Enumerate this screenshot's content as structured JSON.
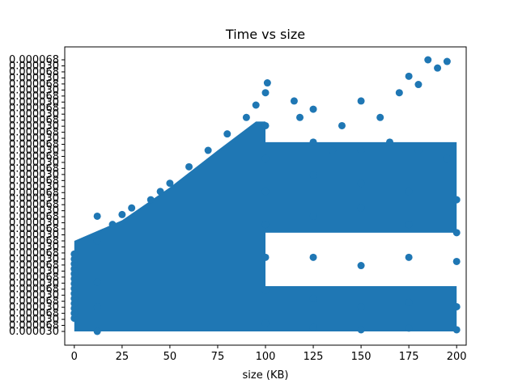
{
  "chart_data": {
    "type": "scatter",
    "title": "Time vs size",
    "xlabel": "size (KB)",
    "ylabel": "",
    "xlim": [
      -5,
      205
    ],
    "x_ticks": [
      0,
      25,
      50,
      75,
      100,
      125,
      150,
      175,
      200
    ],
    "y_tick_labels_legible": [
      "0.000068",
      "0.000030"
    ],
    "grid": false,
    "legend": "none",
    "marker_color": "#1f77b4",
    "note_density": "dense categorical scatter; y-axis is categorical with overlapping tick labels",
    "series": [
      {
        "name": "",
        "color": "#1f77b4",
        "points": [
          [
            0,
            0.16
          ],
          [
            0,
            0.22
          ],
          [
            0,
            0.28
          ],
          [
            0,
            0.34
          ],
          [
            0,
            0.4
          ],
          [
            0,
            0.46
          ],
          [
            0,
            0.52
          ],
          [
            0,
            0.58
          ],
          [
            0,
            0.64
          ],
          [
            0,
            0.7
          ],
          [
            0,
            0.76
          ],
          [
            0,
            0.82
          ],
          [
            0,
            0.88
          ],
          [
            0,
            0.94
          ],
          [
            12,
            0.0
          ],
          [
            12,
            0.3
          ],
          [
            12,
            0.6
          ],
          [
            12,
            1.1
          ],
          [
            12,
            1.4
          ],
          [
            20,
            1.3
          ],
          [
            25,
            1.42
          ],
          [
            30,
            1.5
          ],
          [
            40,
            1.6
          ],
          [
            45,
            1.7
          ],
          [
            50,
            1.8
          ],
          [
            60,
            2.0
          ],
          [
            70,
            2.2
          ],
          [
            80,
            2.4
          ],
          [
            90,
            2.6
          ],
          [
            95,
            2.75
          ],
          [
            100,
            2.9
          ],
          [
            101,
            3.02
          ],
          [
            100,
            2.5
          ],
          [
            100,
            2.1
          ],
          [
            100,
            1.7
          ],
          [
            100,
            1.3
          ],
          [
            100,
            0.9
          ],
          [
            100,
            0.5
          ],
          [
            100,
            0.1
          ],
          [
            115,
            2.8
          ],
          [
            118,
            2.6
          ],
          [
            125,
            2.7
          ],
          [
            140,
            2.5
          ],
          [
            150,
            2.8
          ],
          [
            160,
            2.6
          ],
          [
            170,
            2.9
          ],
          [
            175,
            3.1
          ],
          [
            180,
            3.0
          ],
          [
            185,
            3.3
          ],
          [
            190,
            3.2
          ],
          [
            195,
            3.28
          ],
          [
            125,
            2.3
          ],
          [
            135,
            2.2
          ],
          [
            150,
            2.2
          ],
          [
            165,
            2.3
          ],
          [
            180,
            2.2
          ],
          [
            195,
            2.1
          ],
          [
            125,
            1.9
          ],
          [
            150,
            1.8
          ],
          [
            175,
            1.7
          ],
          [
            200,
            1.6
          ],
          [
            125,
            1.4
          ],
          [
            150,
            1.5
          ],
          [
            175,
            1.3
          ],
          [
            200,
            1.2
          ],
          [
            125,
            0.9
          ],
          [
            150,
            0.8
          ],
          [
            175,
            0.9
          ],
          [
            200,
            0.85
          ],
          [
            125,
            0.4
          ],
          [
            150,
            0.3
          ],
          [
            175,
            0.35
          ],
          [
            200,
            0.3
          ],
          [
            125,
            0.05
          ],
          [
            150,
            0.02
          ],
          [
            175,
            0.04
          ],
          [
            200,
            0.02
          ]
        ]
      }
    ]
  }
}
